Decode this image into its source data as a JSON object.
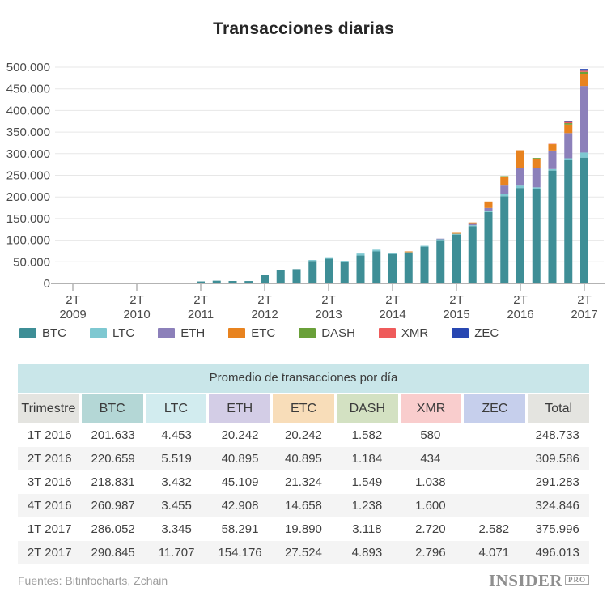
{
  "page": {
    "title": "Transacciones diarias"
  },
  "chart_data": {
    "type": "bar",
    "stacked": true,
    "title": "Transacciones diarias",
    "grid": true,
    "legend_position": "bottom",
    "ylim": [
      0,
      500000
    ],
    "y_ticks": [
      "0",
      "50.000",
      "100.000",
      "150.000",
      "200.000",
      "250.000",
      "300.000",
      "350.000",
      "400.000",
      "450.000",
      "500.000"
    ],
    "x_tick_labels": [
      "2T 2009",
      "2T 2010",
      "2T 2011",
      "2T 2012",
      "2T 2013",
      "2T 2014",
      "2T 2015",
      "2T 2016",
      "2T 2017"
    ],
    "categories": [
      "1T 2009",
      "2T 2009",
      "3T 2009",
      "4T 2009",
      "1T 2010",
      "2T 2010",
      "3T 2010",
      "4T 2010",
      "1T 2011",
      "2T 2011",
      "3T 2011",
      "4T 2011",
      "1T 2012",
      "2T 2012",
      "3T 2012",
      "4T 2012",
      "1T 2013",
      "2T 2013",
      "3T 2013",
      "4T 2013",
      "1T 2014",
      "2T 2014",
      "3T 2014",
      "4T 2014",
      "1T 2015",
      "2T 2015",
      "3T 2015",
      "4T 2015",
      "1T 2016",
      "2T 2016",
      "3T 2016",
      "4T 2016",
      "1T 2017",
      "2T 2017"
    ],
    "series": [
      {
        "name": "BTC",
        "color": "#3e8e96",
        "values": [
          50,
          100,
          200,
          350,
          450,
          600,
          800,
          1200,
          1000,
          4600,
          6300,
          5600,
          5500,
          19500,
          30500,
          33000,
          52000,
          57000,
          50000,
          64500,
          74000,
          68000,
          70000,
          85000,
          100000,
          113000,
          132000,
          165000,
          201633,
          220659,
          218831,
          260987,
          286052,
          290845
        ]
      },
      {
        "name": "LTC",
        "color": "#7ec8d1",
        "values": [
          0,
          0,
          0,
          0,
          0,
          0,
          0,
          0,
          0,
          300,
          700,
          500,
          400,
          600,
          700,
          1200,
          2200,
          3600,
          2300,
          4500,
          4000,
          2500,
          2000,
          2000,
          2000,
          2000,
          2500,
          2500,
          4453,
          5519,
          3432,
          3455,
          3345,
          11707
        ]
      },
      {
        "name": "ETH",
        "color": "#8c80ba",
        "values": [
          0,
          0,
          0,
          0,
          0,
          0,
          0,
          0,
          0,
          0,
          0,
          0,
          0,
          0,
          0,
          0,
          0,
          0,
          0,
          0,
          0,
          0,
          0,
          0,
          1500,
          0,
          3000,
          7000,
          20242,
          40895,
          45109,
          42908,
          58291,
          154176
        ]
      },
      {
        "name": "ETC",
        "color": "#e8831f",
        "values": [
          0,
          0,
          0,
          0,
          0,
          0,
          0,
          0,
          0,
          0,
          0,
          0,
          0,
          0,
          0,
          0,
          0,
          0,
          0,
          0,
          0,
          1200,
          2000,
          1200,
          1000,
          2000,
          3500,
          15000,
          20242,
          40895,
          21324,
          14658,
          19890,
          27524
        ]
      },
      {
        "name": "DASH",
        "color": "#6aa039",
        "values": [
          0,
          0,
          0,
          0,
          0,
          0,
          0,
          0,
          0,
          0,
          0,
          0,
          0,
          0,
          0,
          0,
          0,
          0,
          0,
          0,
          0,
          0,
          0,
          0,
          0,
          0,
          0,
          0,
          1582,
          1184,
          1549,
          1238,
          3118,
          4893
        ]
      },
      {
        "name": "XMR",
        "color": "#ef5b5b",
        "values": [
          0,
          0,
          0,
          0,
          0,
          0,
          0,
          0,
          0,
          0,
          0,
          0,
          0,
          0,
          0,
          0,
          0,
          0,
          0,
          0,
          500,
          800,
          1000,
          800,
          500,
          1000,
          1000,
          500,
          580,
          434,
          1038,
          1600,
          2720,
          2796
        ]
      },
      {
        "name": "ZEC",
        "color": "#2847b2",
        "values": [
          0,
          0,
          0,
          0,
          0,
          0,
          0,
          0,
          0,
          0,
          0,
          0,
          0,
          0,
          0,
          0,
          0,
          0,
          0,
          0,
          0,
          0,
          0,
          0,
          0,
          0,
          0,
          0,
          0,
          0,
          0,
          0,
          2582,
          4071
        ]
      }
    ]
  },
  "table": {
    "title": "Promedio de transacciones por día",
    "columns": [
      {
        "label": "Trimestre",
        "bg": "#e4e4e0"
      },
      {
        "label": "BTC",
        "bg": "#b4d7d6"
      },
      {
        "label": "LTC",
        "bg": "#d2ecef"
      },
      {
        "label": "ETH",
        "bg": "#d3cde6"
      },
      {
        "label": "ETC",
        "bg": "#f8ddb9"
      },
      {
        "label": "DASH",
        "bg": "#d3e1c2"
      },
      {
        "label": "XMR",
        "bg": "#f9cdcd"
      },
      {
        "label": "ZEC",
        "bg": "#c6cfec"
      },
      {
        "label": "Total",
        "bg": "#e4e4e0"
      }
    ],
    "rows": [
      [
        "1T 2016",
        "201.633",
        "4.453",
        "20.242",
        "20.242",
        "1.582",
        "580",
        "",
        "248.733"
      ],
      [
        "2T 2016",
        "220.659",
        "5.519",
        "40.895",
        "40.895",
        "1.184",
        "434",
        "",
        "309.586"
      ],
      [
        "3T 2016",
        "218.831",
        "3.432",
        "45.109",
        "21.324",
        "1.549",
        "1.038",
        "",
        "291.283"
      ],
      [
        "4T 2016",
        "260.987",
        "3.455",
        "42.908",
        "14.658",
        "1.238",
        "1.600",
        "",
        "324.846"
      ],
      [
        "1T 2017",
        "286.052",
        "3.345",
        "58.291",
        "19.890",
        "3.118",
        "2.720",
        "2.582",
        "375.996"
      ],
      [
        "2T 2017",
        "290.845",
        "11.707",
        "154.176",
        "27.524",
        "4.893",
        "2.796",
        "4.071",
        "496.013"
      ]
    ]
  },
  "footer": {
    "source": "Fuentes: Bitinfocharts, Zchain",
    "brand": "INSIDER",
    "brand_suffix": "PRO"
  }
}
